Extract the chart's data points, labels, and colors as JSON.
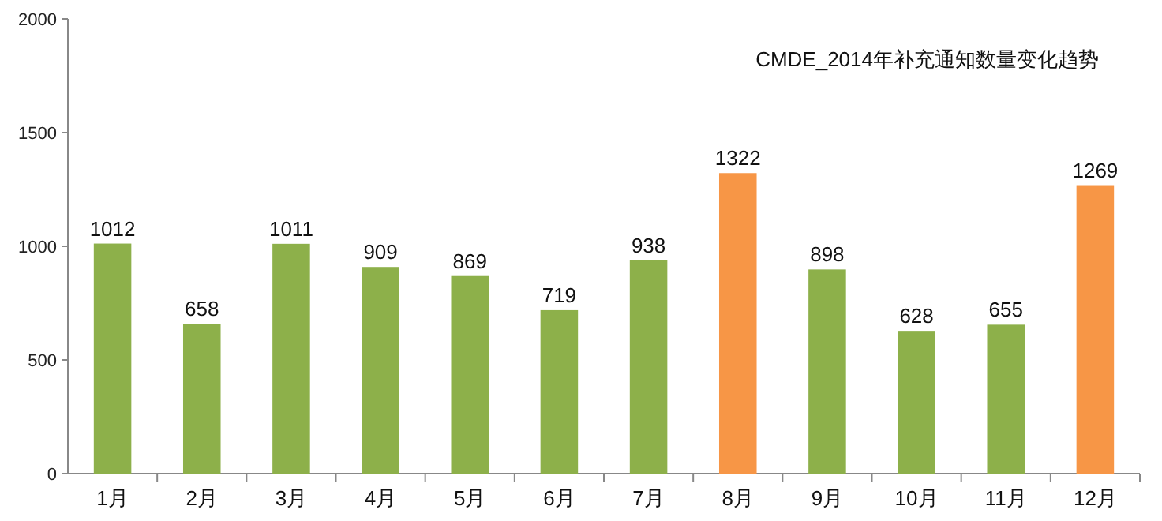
{
  "chart_data": {
    "type": "bar",
    "title": "CMDE_2014年补充通知数量变化趋势",
    "categories": [
      "1月",
      "2月",
      "3月",
      "4月",
      "5月",
      "6月",
      "7月",
      "8月",
      "9月",
      "10月",
      "11月",
      "12月"
    ],
    "values": [
      1012,
      658,
      1011,
      909,
      869,
      719,
      938,
      1322,
      898,
      628,
      655,
      1269
    ],
    "colors": [
      "#8db04a",
      "#8db04a",
      "#8db04a",
      "#8db04a",
      "#8db04a",
      "#8db04a",
      "#8db04a",
      "#f79646",
      "#8db04a",
      "#8db04a",
      "#8db04a",
      "#f79646"
    ],
    "ylim": [
      0,
      2000
    ],
    "yticks": [
      0,
      500,
      1000,
      1500,
      2000
    ],
    "data_labels": true
  }
}
